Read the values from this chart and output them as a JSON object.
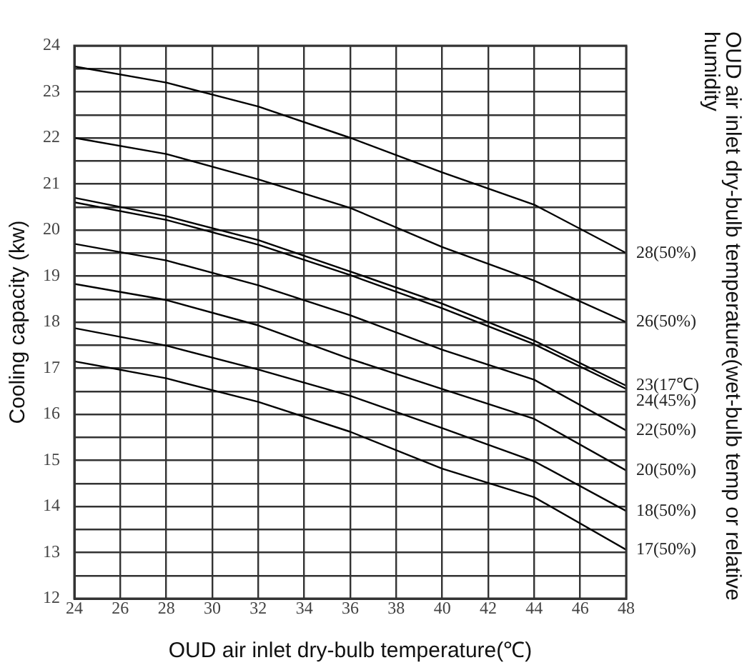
{
  "chart_data": {
    "type": "line",
    "xlabel": "OUD air inlet dry-bulb temperature(℃)",
    "ylabel": "Cooling capacity (kw)",
    "y2label": "OUD air inlet dry-bulb temperature(wet-bulb temp or relative humidity",
    "x": [
      24,
      28,
      32,
      36,
      40,
      44,
      48
    ],
    "series": [
      {
        "name": "28(50%)",
        "color": "#000000",
        "values": [
          23.55,
          23.2,
          22.68,
          22.0,
          21.25,
          20.55,
          19.5
        ]
      },
      {
        "name": "26(50%)",
        "color": "#000000",
        "values": [
          22.0,
          21.65,
          21.1,
          20.48,
          19.63,
          18.9,
          18.0
        ]
      },
      {
        "name": "23(17℃)",
        "color": "#000000",
        "values": [
          20.7,
          20.3,
          19.78,
          19.1,
          18.4,
          17.6,
          16.62
        ]
      },
      {
        "name": "24(45%)",
        "color": "#000000",
        "values": [
          20.6,
          20.22,
          19.68,
          19.02,
          18.3,
          17.52,
          16.55
        ]
      },
      {
        "name": "22(50%)",
        "color": "#000000",
        "values": [
          19.7,
          19.34,
          18.8,
          18.15,
          17.4,
          16.75,
          15.65
        ]
      },
      {
        "name": "20(50%)",
        "color": "#000000",
        "values": [
          18.83,
          18.48,
          17.93,
          17.2,
          16.55,
          15.9,
          14.78
        ]
      },
      {
        "name": "18(50%)",
        "color": "#000000",
        "values": [
          17.87,
          17.49,
          16.97,
          16.4,
          15.7,
          14.98,
          13.9
        ]
      },
      {
        "name": "17(50%)",
        "color": "#000000",
        "values": [
          17.15,
          16.78,
          16.27,
          15.62,
          14.82,
          14.2,
          13.06
        ]
      }
    ],
    "xlim": [
      24,
      48
    ],
    "xticks": [
      24,
      26,
      28,
      30,
      32,
      34,
      36,
      38,
      40,
      42,
      44,
      46,
      48
    ],
    "ylim": [
      12,
      24
    ],
    "yticks": [
      12,
      {
        "value": 12.5,
        "label": null
      },
      13,
      {
        "value": 13.5,
        "label": null
      },
      14,
      {
        "value": 14.5,
        "label": null
      },
      15,
      {
        "value": 15.5,
        "label": null
      },
      16,
      {
        "value": 16.5,
        "label": null
      },
      17,
      {
        "value": 17.5,
        "label": null
      },
      18,
      {
        "value": 18.5,
        "label": null
      },
      19,
      {
        "value": 19.5,
        "label": null
      },
      20,
      {
        "value": 20.5,
        "label": null
      },
      21,
      {
        "value": 21.5,
        "label": null
      },
      22,
      {
        "value": 22.5,
        "label": null
      },
      23,
      {
        "value": 23.5,
        "label": null
      },
      24
    ],
    "grid": true,
    "legend": false,
    "marker": "none",
    "line_style": "solid"
  }
}
